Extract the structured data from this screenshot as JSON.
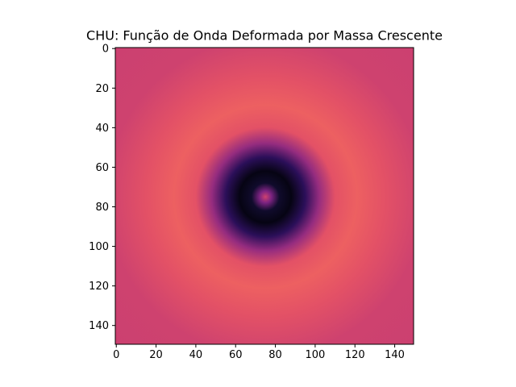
{
  "chart_data": {
    "type": "heatmap",
    "title": "CHU: Função de Onda Deformada por Massa Crescente",
    "xlabel": "",
    "ylabel": "",
    "x_range": [
      0,
      149
    ],
    "y_range": [
      0,
      149
    ],
    "y_inverted": true,
    "grid": false,
    "colormap": "magma",
    "x_ticks": [
      "0",
      "20",
      "40",
      "60",
      "80",
      "100",
      "120",
      "140"
    ],
    "y_ticks": [
      "0",
      "20",
      "40",
      "60",
      "80",
      "100",
      "120",
      "140"
    ],
    "x_tick_values": [
      0,
      20,
      40,
      60,
      80,
      100,
      120,
      140
    ],
    "y_tick_values": [
      0,
      20,
      40,
      60,
      80,
      100,
      120,
      140
    ],
    "center": [
      75,
      75
    ],
    "radial_profile": [
      {
        "r": 0,
        "level": 0.56
      },
      {
        "r": 3,
        "level": 0.36
      },
      {
        "r": 7,
        "level": 0.08
      },
      {
        "r": 13,
        "level": 0.03
      },
      {
        "r": 20,
        "level": 0.16
      },
      {
        "r": 27,
        "level": 0.42
      },
      {
        "r": 35,
        "level": 0.62
      },
      {
        "r": 46,
        "level": 0.66
      },
      {
        "r": 60,
        "level": 0.62
      },
      {
        "r": 80,
        "level": 0.56
      },
      {
        "r": 110,
        "level": 0.55
      }
    ],
    "colors": {
      "dark": "#0d0a29",
      "purple": "#4a1079",
      "magenta": "#b73779",
      "pink": "#d8456c",
      "outer": "#b5367a"
    }
  }
}
